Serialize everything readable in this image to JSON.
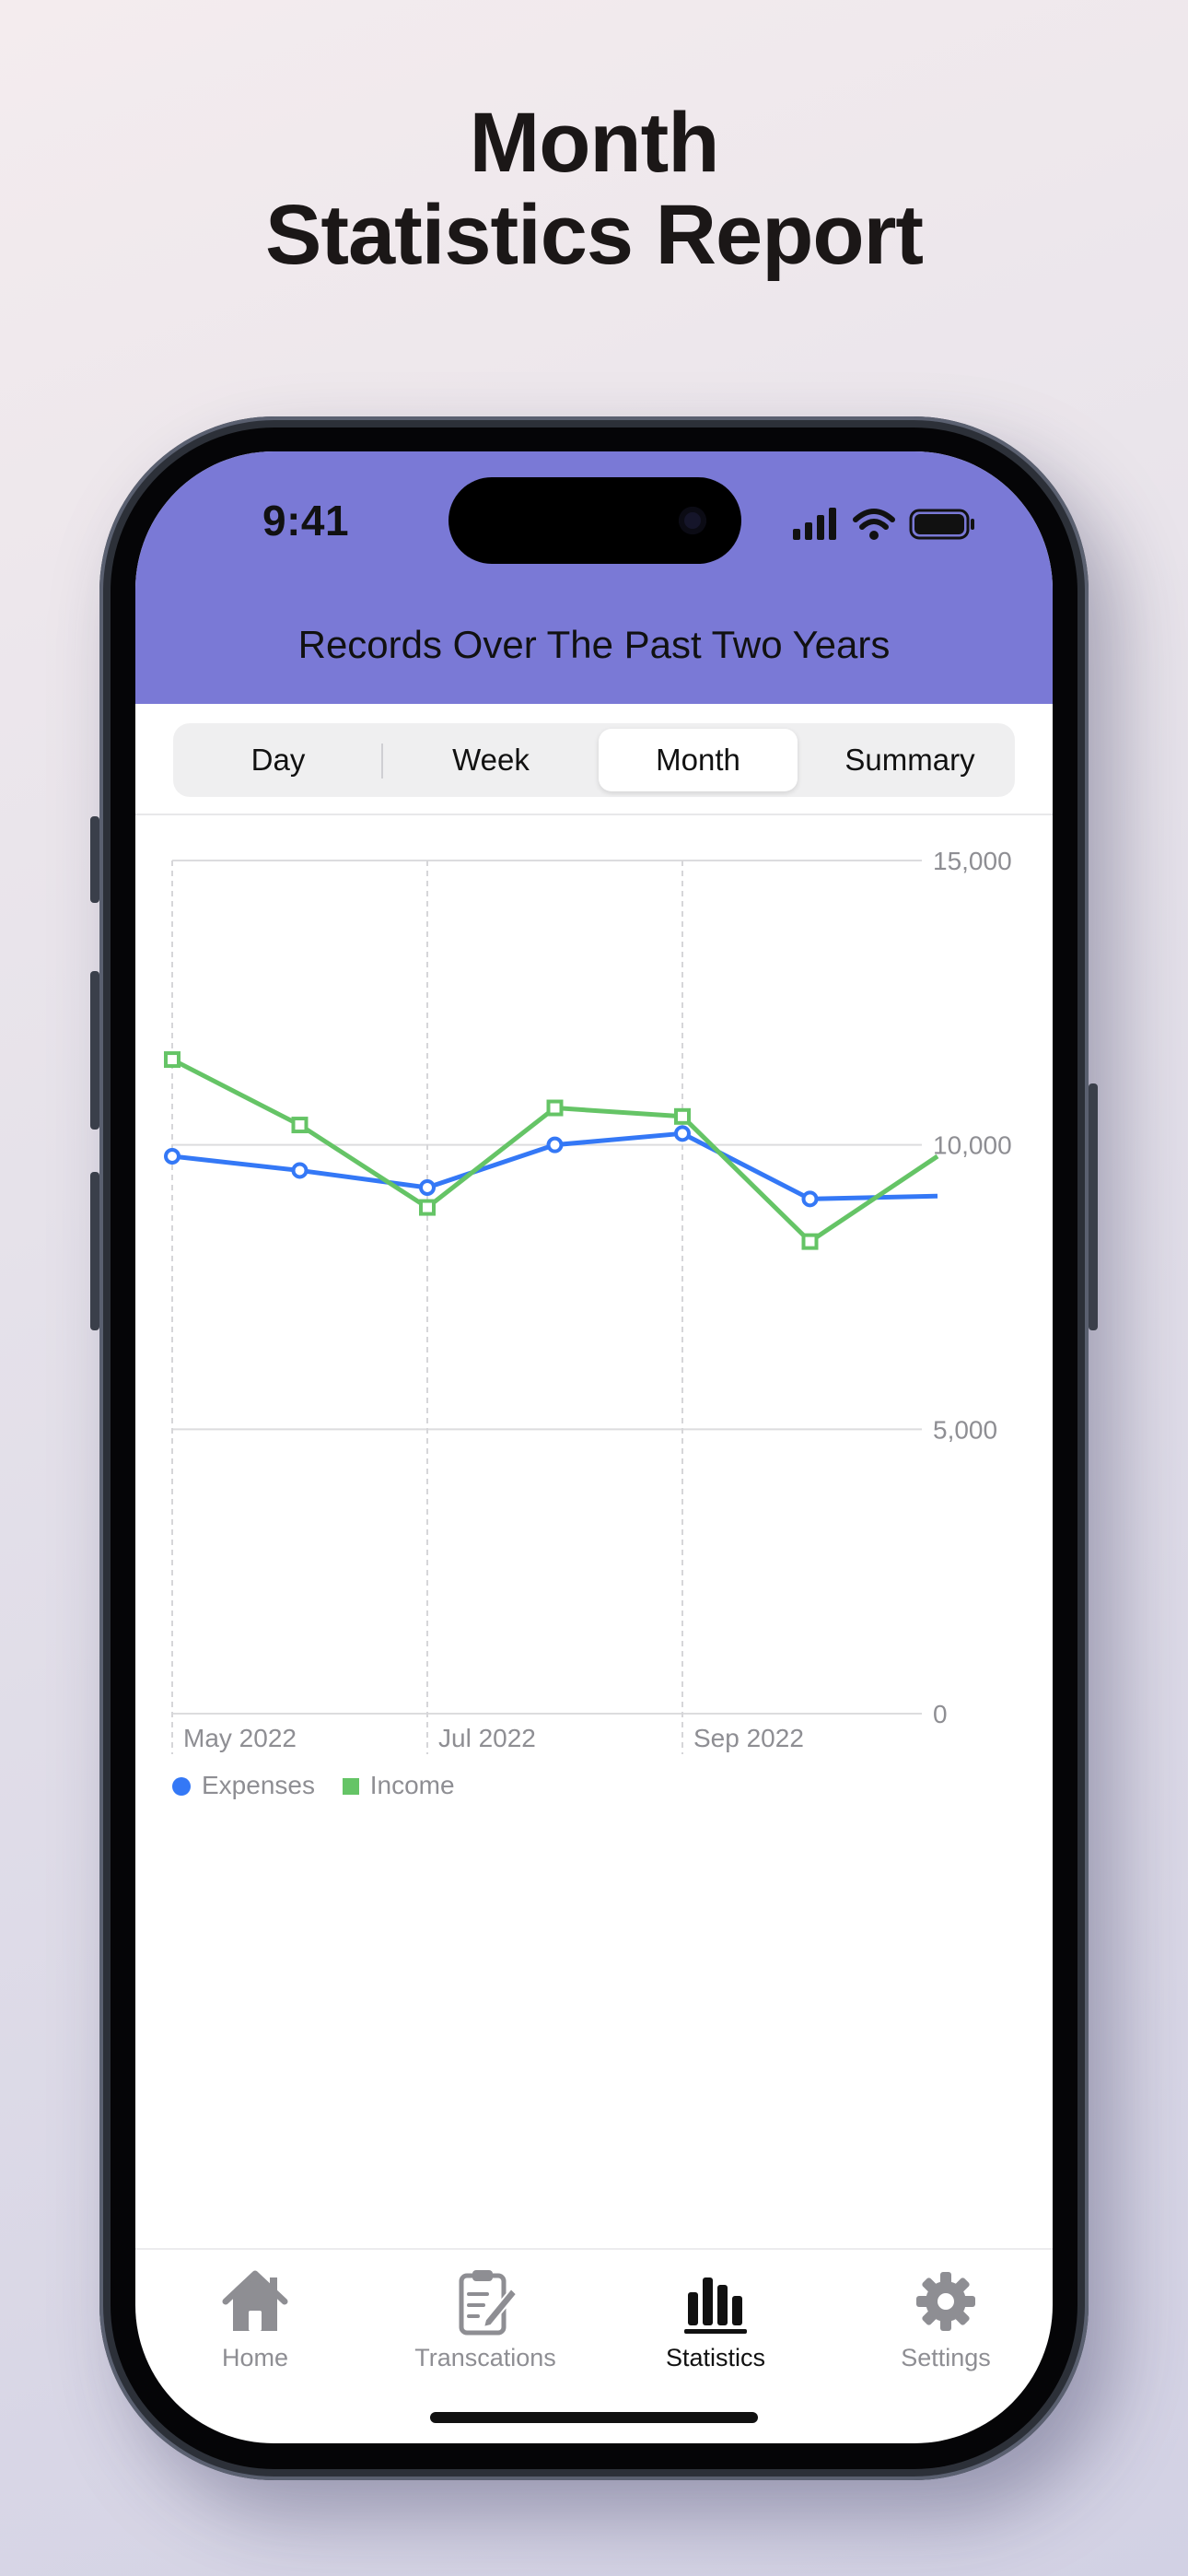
{
  "headline": {
    "line1": "Month",
    "line2": "Statistics Report"
  },
  "status_bar": {
    "time": "9:41",
    "icons": [
      "signal-icon",
      "wifi-icon",
      "battery-icon"
    ]
  },
  "header": {
    "title": "Records Over The Past Two Years",
    "background": "#7a79d6"
  },
  "segments": [
    {
      "label": "Day",
      "selected": false
    },
    {
      "label": "Week",
      "selected": false
    },
    {
      "label": "Month",
      "selected": true
    },
    {
      "label": "Summary",
      "selected": false
    }
  ],
  "chart_data": {
    "type": "line",
    "x": [
      "2022-05",
      "2022-06",
      "2022-07",
      "2022-08",
      "2022-09",
      "2022-10",
      "2022-11"
    ],
    "x_tick_labels": [
      "May 2022",
      "Jul 2022",
      "Sep 2022"
    ],
    "y_tick_labels": [
      "15,000",
      "10,000",
      "5,000",
      "0"
    ],
    "ylim": [
      0,
      15000
    ],
    "y_axis_position": "right",
    "grid": true,
    "legend_position": "bottom-left",
    "series": [
      {
        "name": "Expenses",
        "color": "#3478f6",
        "marker": "circle",
        "values": [
          9800,
          9550,
          9250,
          10000,
          10200,
          9050,
          9100
        ]
      },
      {
        "name": "Income",
        "color": "#65c466",
        "marker": "square",
        "values": [
          11500,
          10350,
          8900,
          10650,
          10500,
          8300,
          9800
        ]
      }
    ]
  },
  "tabbar": {
    "items": [
      {
        "label": "Home",
        "icon": "home-icon",
        "active": false
      },
      {
        "label": "Transcations",
        "icon": "clipboard-icon",
        "active": false
      },
      {
        "label": "Statistics",
        "icon": "bar-chart-icon",
        "active": true
      },
      {
        "label": "Settings",
        "icon": "gear-icon",
        "active": false
      }
    ]
  }
}
